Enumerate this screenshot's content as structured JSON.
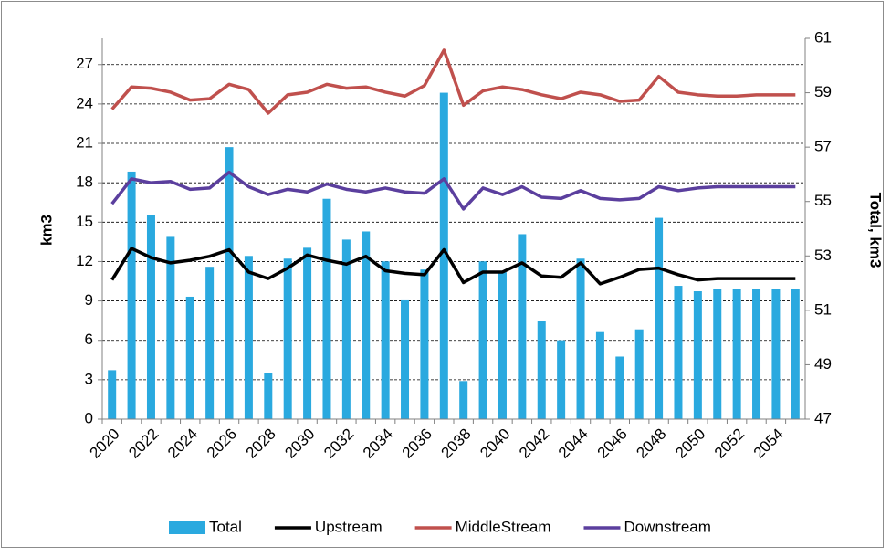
{
  "chart_data": {
    "type": "bar_line",
    "y_label": "km3",
    "y2_label": "Total, km3",
    "categories": [
      "2020",
      null,
      "2022",
      null,
      "2024",
      null,
      "2026",
      null,
      "2028",
      null,
      "2030",
      null,
      "2032",
      null,
      "2034",
      null,
      "2036",
      null,
      "2038",
      null,
      "2040",
      null,
      "2042",
      null,
      "2044",
      null,
      "2046",
      null,
      "2048",
      null,
      "2050",
      null,
      "2052",
      null,
      "2054",
      null
    ],
    "ylim": [
      0,
      29
    ],
    "yticks": [
      0,
      3,
      6,
      9,
      12,
      15,
      18,
      21,
      24,
      27
    ],
    "y2lim": [
      47,
      61
    ],
    "y2ticks": [
      47,
      49,
      51,
      53,
      55,
      57,
      59,
      61
    ],
    "grid": true,
    "legend": "bottom",
    "series": [
      {
        "name": "Total",
        "type": "bar",
        "axis": "y2",
        "color": "#2aa9df",
        "values": [
          48.8,
          56.1,
          54.5,
          53.7,
          51.5,
          52.6,
          57.0,
          53.0,
          48.7,
          52.9,
          53.3,
          55.1,
          53.6,
          53.9,
          52.8,
          51.4,
          52.5,
          59.0,
          48.4,
          52.8,
          52.4,
          53.8,
          50.6,
          49.9,
          52.9,
          50.2,
          49.3,
          50.3,
          54.4,
          51.9,
          51.7,
          51.8,
          51.8,
          51.8,
          51.8,
          51.8
        ]
      },
      {
        "name": "Upstream",
        "type": "line",
        "color": "#000000",
        "values": [
          10.6,
          13.0,
          12.3,
          11.9,
          12.1,
          12.4,
          12.9,
          11.2,
          10.7,
          11.5,
          12.5,
          12.1,
          11.8,
          12.4,
          11.3,
          11.1,
          11.0,
          12.9,
          10.4,
          11.2,
          11.2,
          11.9,
          10.9,
          10.8,
          11.9,
          10.3,
          10.8,
          11.4,
          11.5,
          11.0,
          10.6,
          10.7,
          10.7,
          10.7,
          10.7,
          10.7
        ]
      },
      {
        "name": "MiddleStream",
        "type": "line",
        "color": "#c0504d",
        "values": [
          23.6,
          25.3,
          25.2,
          24.9,
          24.3,
          24.4,
          25.5,
          25.1,
          23.3,
          24.7,
          24.9,
          25.5,
          25.2,
          25.3,
          24.9,
          24.6,
          25.4,
          28.1,
          23.9,
          25.0,
          25.3,
          25.1,
          24.7,
          24.4,
          24.9,
          24.7,
          24.2,
          24.3,
          26.1,
          24.9,
          24.7,
          24.6,
          24.6,
          24.7,
          24.7,
          24.7
        ]
      },
      {
        "name": "Downstream",
        "type": "line",
        "color": "#5b3f9e",
        "values": [
          16.4,
          18.3,
          18.0,
          18.1,
          17.5,
          17.6,
          18.8,
          17.7,
          17.1,
          17.5,
          17.3,
          17.9,
          17.5,
          17.3,
          17.6,
          17.3,
          17.2,
          18.3,
          16.0,
          17.6,
          17.1,
          17.7,
          16.9,
          16.8,
          17.4,
          16.8,
          16.7,
          16.8,
          17.7,
          17.4,
          17.6,
          17.7,
          17.7,
          17.7,
          17.7,
          17.7
        ]
      }
    ]
  }
}
